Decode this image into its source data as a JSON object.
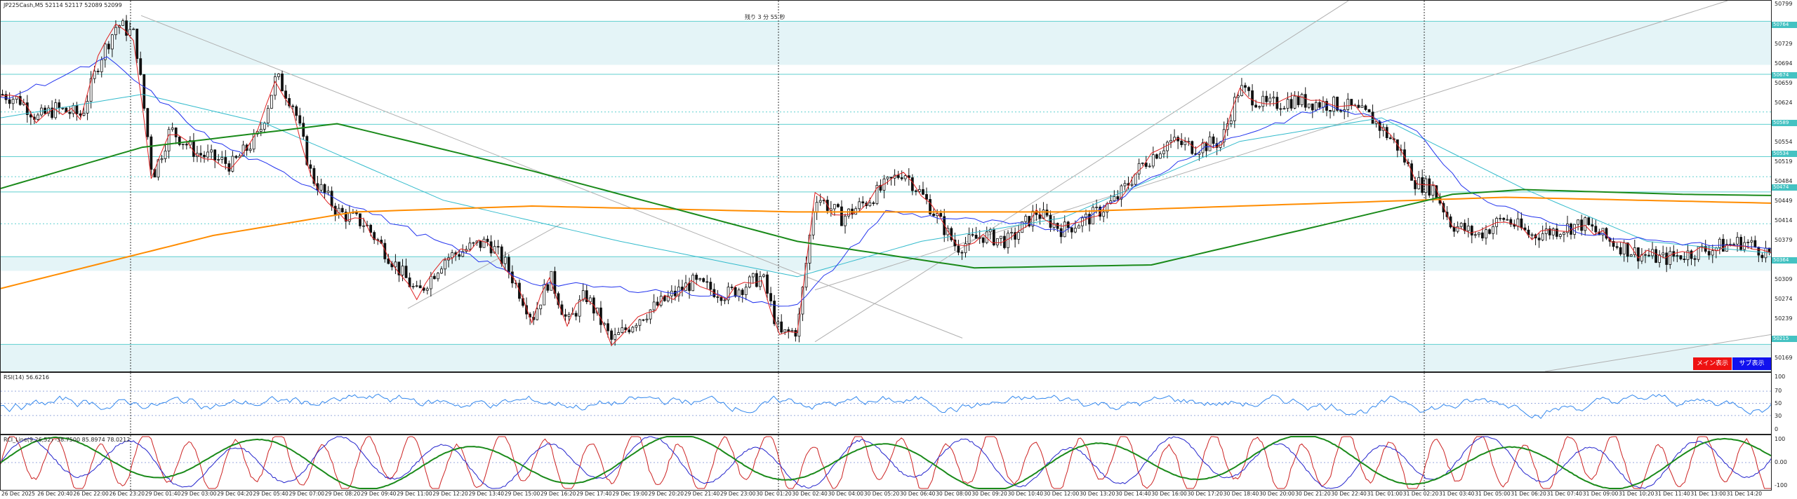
{
  "symbol_header": "JP225Cash,M5  52114 52117 52089 52099",
  "countdown": "残り 3 分 55 秒",
  "colors": {
    "zone_fill": "#e4f4f7",
    "zone_line": "#5fcfcf",
    "candle": "#111111",
    "ma_fast": "#e02020",
    "ma_mid": "#2233ee",
    "ma_slow": "#33bbcc",
    "ma_green": "#1a8a1a",
    "ma_orange": "#ff8c00",
    "rsi_line": "#3388ee",
    "rci_red": "#cc2222",
    "rci_blue": "#2222cc",
    "rci_green": "#1a8a1a",
    "btn_main": "#ee1111",
    "btn_sub": "#1111ee"
  },
  "price_axis": [
    "50799",
    "50764",
    "50729",
    "50694",
    "50659",
    "50624",
    "50589",
    "50554",
    "50519",
    "50484",
    "50449",
    "50414",
    "50379",
    "50344",
    "50309",
    "50274",
    "50239",
    "50204",
    "50169"
  ],
  "price_tags": [
    "50764",
    "50674",
    "50589",
    "50534",
    "50474",
    "50364",
    "50215"
  ],
  "indicators": {
    "rsi_label": "RSI(14) 56.6216",
    "rsi_axis": [
      "100",
      "70",
      "50",
      "30",
      "0"
    ],
    "rci_label": "RCI_Line(9,26,52) -38.7500 85.8974 78.0212",
    "rci_axis": [
      "100",
      "0.00",
      "-100"
    ]
  },
  "buttons": {
    "main": "メイン表示",
    "sub": "サブ表示"
  },
  "time_axis": [
    "26 Dec 2025",
    "26 Dec 20:40",
    "26 Dec 22:00",
    "26 Dec 23:20",
    "29 Dec 01:40",
    "29 Dec 03:00",
    "29 Dec 04:20",
    "29 Dec 05:40",
    "29 Dec 07:00",
    "29 Dec 08:20",
    "29 Dec 09:40",
    "29 Dec 11:00",
    "29 Dec 12:20",
    "29 Dec 13:40",
    "29 Dec 15:00",
    "29 Dec 16:20",
    "29 Dec 17:40",
    "29 Dec 19:00",
    "29 Dec 20:20",
    "29 Dec 21:40",
    "29 Dec 23:00",
    "30 Dec 01:20",
    "30 Dec 02:40",
    "30 Dec 04:00",
    "30 Dec 05:20",
    "30 Dec 06:40",
    "30 Dec 08:00",
    "30 Dec 09:20",
    "30 Dec 10:40",
    "30 Dec 12:00",
    "30 Dec 13:20",
    "30 Dec 14:40",
    "30 Dec 16:00",
    "30 Dec 17:20",
    "30 Dec 18:40",
    "30 Dec 20:00",
    "30 Dec 21:20",
    "30 Dec 22:40",
    "31 Dec 01:00",
    "31 Dec 02:20",
    "31 Dec 03:40",
    "31 Dec 05:00",
    "31 Dec 06:20",
    "31 Dec 07:40",
    "31 Dec 09:00",
    "31 Dec 10:20",
    "31 Dec 11:40",
    "31 Dec 13:00",
    "31 Dec 14:20"
  ],
  "chart_data": {
    "type": "candlestick",
    "ylim": [
      50169,
      50799
    ],
    "close_path": [
      [
        0,
        50640
      ],
      [
        0.01,
        50630
      ],
      [
        0.02,
        50600
      ],
      [
        0.03,
        50615
      ],
      [
        0.045,
        50605
      ],
      [
        0.055,
        50700
      ],
      [
        0.065,
        50760
      ],
      [
        0.075,
        50740
      ],
      [
        0.085,
        50500
      ],
      [
        0.095,
        50580
      ],
      [
        0.11,
        50540
      ],
      [
        0.13,
        50520
      ],
      [
        0.145,
        50570
      ],
      [
        0.155,
        50670
      ],
      [
        0.165,
        50620
      ],
      [
        0.175,
        50500
      ],
      [
        0.19,
        50440
      ],
      [
        0.205,
        50420
      ],
      [
        0.22,
        50360
      ],
      [
        0.235,
        50300
      ],
      [
        0.25,
        50360
      ],
      [
        0.265,
        50380
      ],
      [
        0.275,
        50390
      ],
      [
        0.285,
        50350
      ],
      [
        0.3,
        50260
      ],
      [
        0.31,
        50330
      ],
      [
        0.32,
        50250
      ],
      [
        0.33,
        50300
      ],
      [
        0.345,
        50220
      ],
      [
        0.36,
        50260
      ],
      [
        0.375,
        50290
      ],
      [
        0.39,
        50320
      ],
      [
        0.41,
        50300
      ],
      [
        0.43,
        50330
      ],
      [
        0.44,
        50230
      ],
      [
        0.45,
        50240
      ],
      [
        0.46,
        50470
      ],
      [
        0.475,
        50430
      ],
      [
        0.49,
        50460
      ],
      [
        0.51,
        50510
      ],
      [
        0.525,
        50450
      ],
      [
        0.54,
        50380
      ],
      [
        0.555,
        50400
      ],
      [
        0.57,
        50390
      ],
      [
        0.585,
        50440
      ],
      [
        0.6,
        50410
      ],
      [
        0.615,
        50430
      ],
      [
        0.63,
        50460
      ],
      [
        0.645,
        50520
      ],
      [
        0.66,
        50560
      ],
      [
        0.675,
        50550
      ],
      [
        0.69,
        50560
      ],
      [
        0.7,
        50650
      ],
      [
        0.715,
        50620
      ],
      [
        0.73,
        50630
      ],
      [
        0.745,
        50625
      ],
      [
        0.76,
        50620
      ],
      [
        0.775,
        50600
      ],
      [
        0.79,
        50550
      ],
      [
        0.8,
        50490
      ],
      [
        0.81,
        50480
      ],
      [
        0.82,
        50420
      ],
      [
        0.835,
        50400
      ],
      [
        0.85,
        50430
      ],
      [
        0.865,
        50400
      ],
      [
        0.88,
        50410
      ],
      [
        0.895,
        50420
      ],
      [
        0.91,
        50390
      ],
      [
        0.925,
        50370
      ],
      [
        0.94,
        50360
      ],
      [
        0.955,
        50370
      ],
      [
        0.97,
        50380
      ],
      [
        0.985,
        50390
      ],
      [
        1,
        50370
      ]
    ],
    "ma_green_path": [
      [
        0,
        50480
      ],
      [
        0.08,
        50550
      ],
      [
        0.19,
        50590
      ],
      [
        0.3,
        50510
      ],
      [
        0.45,
        50390
      ],
      [
        0.55,
        50345
      ],
      [
        0.65,
        50350
      ],
      [
        0.75,
        50420
      ],
      [
        0.82,
        50470
      ],
      [
        0.86,
        50478
      ],
      [
        0.95,
        50470
      ],
      [
        1,
        50468
      ]
    ],
    "ma_orange_path": [
      [
        0,
        50310
      ],
      [
        0.12,
        50400
      ],
      [
        0.2,
        50440
      ],
      [
        0.3,
        50450
      ],
      [
        0.45,
        50440
      ],
      [
        0.6,
        50440
      ],
      [
        0.75,
        50455
      ],
      [
        0.85,
        50465
      ],
      [
        1,
        50455
      ]
    ],
    "ma_slow_path": [
      [
        0,
        50600
      ],
      [
        0.08,
        50640
      ],
      [
        0.15,
        50590
      ],
      [
        0.25,
        50460
      ],
      [
        0.35,
        50390
      ],
      [
        0.45,
        50330
      ],
      [
        0.52,
        50390
      ],
      [
        0.6,
        50430
      ],
      [
        0.7,
        50560
      ],
      [
        0.78,
        50600
      ],
      [
        0.86,
        50480
      ],
      [
        0.93,
        50390
      ],
      [
        1,
        50370
      ]
    ],
    "ma_mid_path": [
      [
        0,
        50630
      ],
      [
        0.06,
        50700
      ],
      [
        0.12,
        50560
      ],
      [
        0.2,
        50450
      ],
      [
        0.3,
        50320
      ],
      [
        0.4,
        50300
      ],
      [
        0.45,
        50280
      ],
      [
        0.5,
        50440
      ],
      [
        0.6,
        50410
      ],
      [
        0.68,
        50550
      ],
      [
        0.75,
        50620
      ],
      [
        0.8,
        50580
      ],
      [
        0.83,
        50470
      ],
      [
        0.9,
        50400
      ],
      [
        1,
        50375
      ]
    ]
  }
}
